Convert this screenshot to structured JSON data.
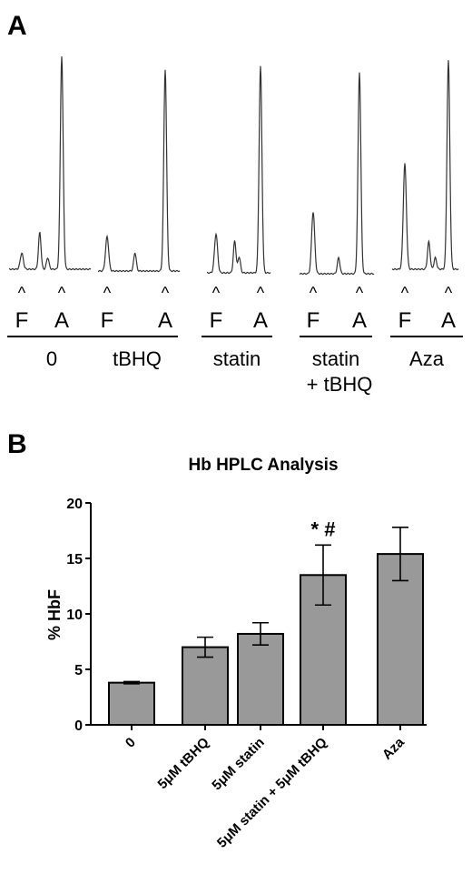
{
  "panel_a": {
    "letter": "A",
    "peak_marker": "^",
    "peak_labels": [
      "F",
      "A"
    ],
    "conditions": [
      {
        "label": "0",
        "label2": "",
        "F": 0.07,
        "A": 0.93,
        "small": [
          {
            "pos": 0.45,
            "h": 0.16
          },
          {
            "pos": 0.65,
            "h": 0.05
          }
        ]
      },
      {
        "label": "tBHQ",
        "label2": "",
        "F": 0.15,
        "A": 0.88,
        "small": [
          {
            "pos": 0.48,
            "h": 0.08
          }
        ]
      },
      {
        "label": "statin",
        "label2": "",
        "F": 0.17,
        "A": 0.9,
        "small": [
          {
            "pos": 0.42,
            "h": 0.14
          },
          {
            "pos": 0.52,
            "h": 0.07
          }
        ]
      },
      {
        "label": "statin",
        "label2": "+ tBHQ",
        "F": 0.27,
        "A": 0.88,
        "small": [
          {
            "pos": 0.55,
            "h": 0.07
          }
        ]
      },
      {
        "label": "Aza",
        "label2": "",
        "F": 0.46,
        "A": 0.91,
        "small": [
          {
            "pos": 0.55,
            "h": 0.12
          },
          {
            "pos": 0.7,
            "h": 0.05
          }
        ]
      }
    ]
  },
  "panel_b": {
    "letter": "B"
  },
  "chart_data": {
    "type": "bar",
    "title": "Hb HPLC Analysis",
    "ylabel": "% HbF",
    "xlabel": "",
    "categories": [
      "0",
      "5μM tBHQ",
      "5μM statin",
      "5μM statin + 5μM tBHQ",
      "Aza"
    ],
    "values": [
      3.8,
      7.0,
      8.2,
      13.5,
      15.4
    ],
    "errors": [
      0.1,
      0.9,
      1.0,
      2.7,
      2.4
    ],
    "annotations": [
      {
        "category": "5μM statin + 5μM tBHQ",
        "text": "* #"
      }
    ],
    "ylim": [
      0,
      20
    ],
    "yticks": [
      0,
      5,
      10,
      15,
      20
    ],
    "bar_color": "#999999",
    "grid": false,
    "legend": "none"
  }
}
